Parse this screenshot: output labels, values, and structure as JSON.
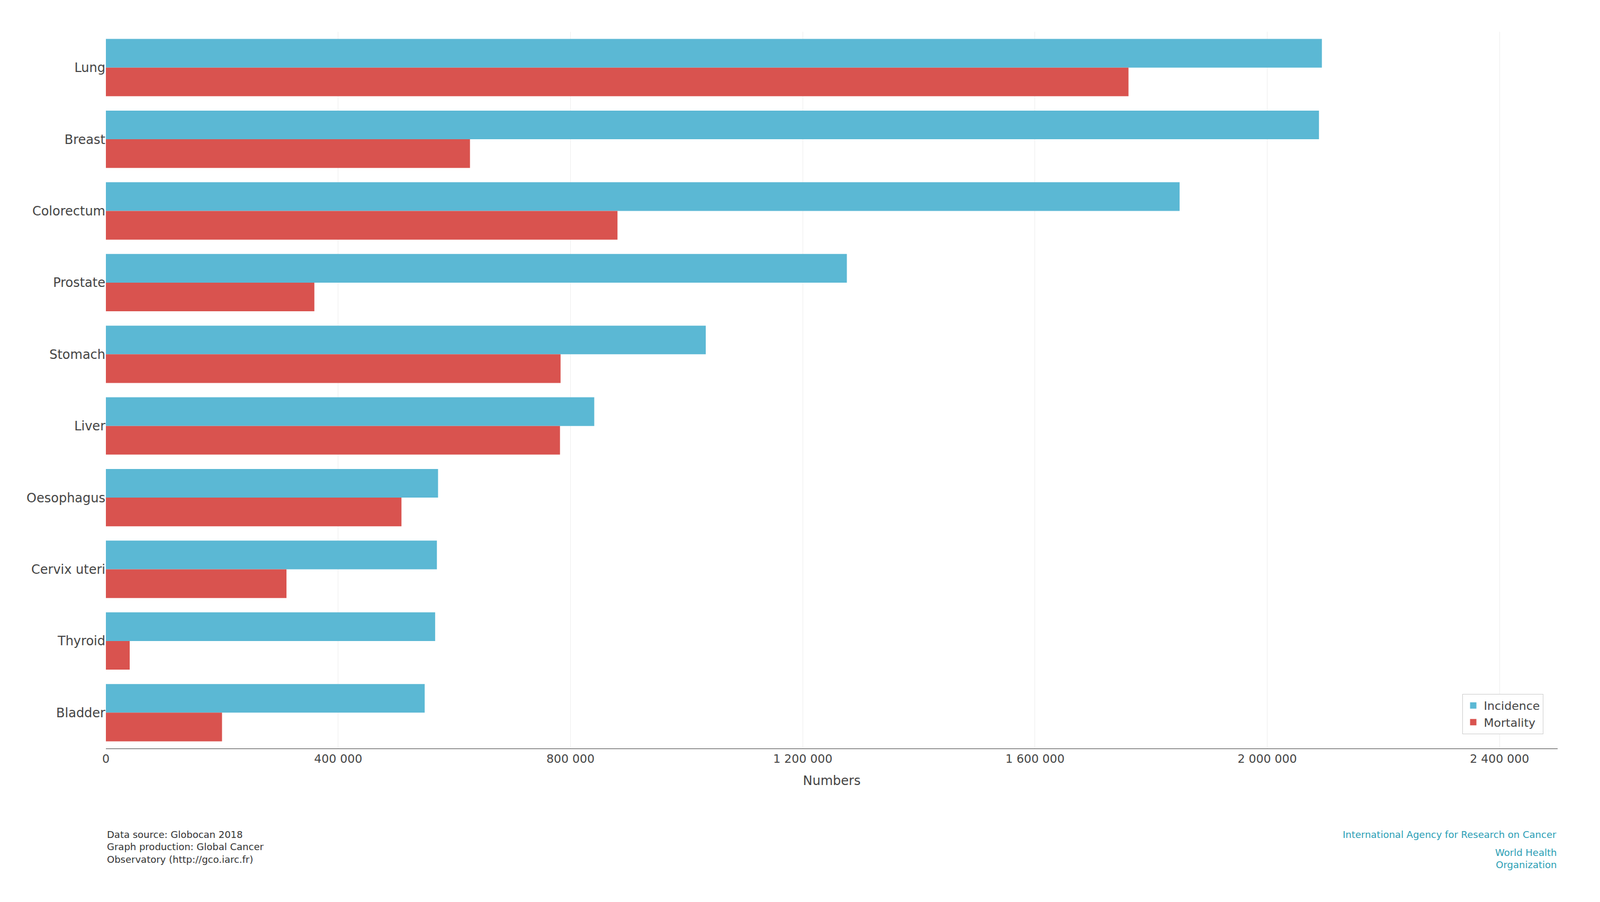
{
  "chart_data": {
    "type": "bar",
    "orientation": "horizontal",
    "categories": [
      "Lung",
      "Breast",
      "Colorectum",
      "Prostate",
      "Stomach",
      "Liver",
      "Oesophagus",
      "Cervix uteri",
      "Thyroid",
      "Bladder"
    ],
    "series": [
      {
        "name": "Incidence",
        "color": "#5BB8D4",
        "values": [
          2094000,
          2089000,
          1849000,
          1276000,
          1033000,
          841000,
          572000,
          570000,
          567000,
          549000
        ]
      },
      {
        "name": "Mortality",
        "color": "#D9534F",
        "values": [
          1761000,
          627000,
          881000,
          359000,
          783000,
          782000,
          509000,
          311000,
          41000,
          200000
        ]
      }
    ],
    "xlabel": "Numbers",
    "xlim": [
      0,
      2500000
    ],
    "xticks": [
      0,
      {
        "value": 400000,
        "label": "400 000"
      },
      {
        "value": 800000,
        "label": "800 000"
      },
      {
        "value": 1200000,
        "label": "1 200 000"
      },
      {
        "value": 1600000,
        "label": "1 600 000"
      },
      {
        "value": 2000000,
        "label": "2 000 000"
      },
      {
        "value": 2400000,
        "label": "2 400 000"
      }
    ],
    "grid": true,
    "legend": "lower right",
    "annotations": [
      "Data source: Globocan 2018\nGraph production: Global Cancer\nObservatory (http://gco.iarc.fr)",
      "International Agency for Research on Cancer",
      "World Health\nOrganization"
    ]
  }
}
